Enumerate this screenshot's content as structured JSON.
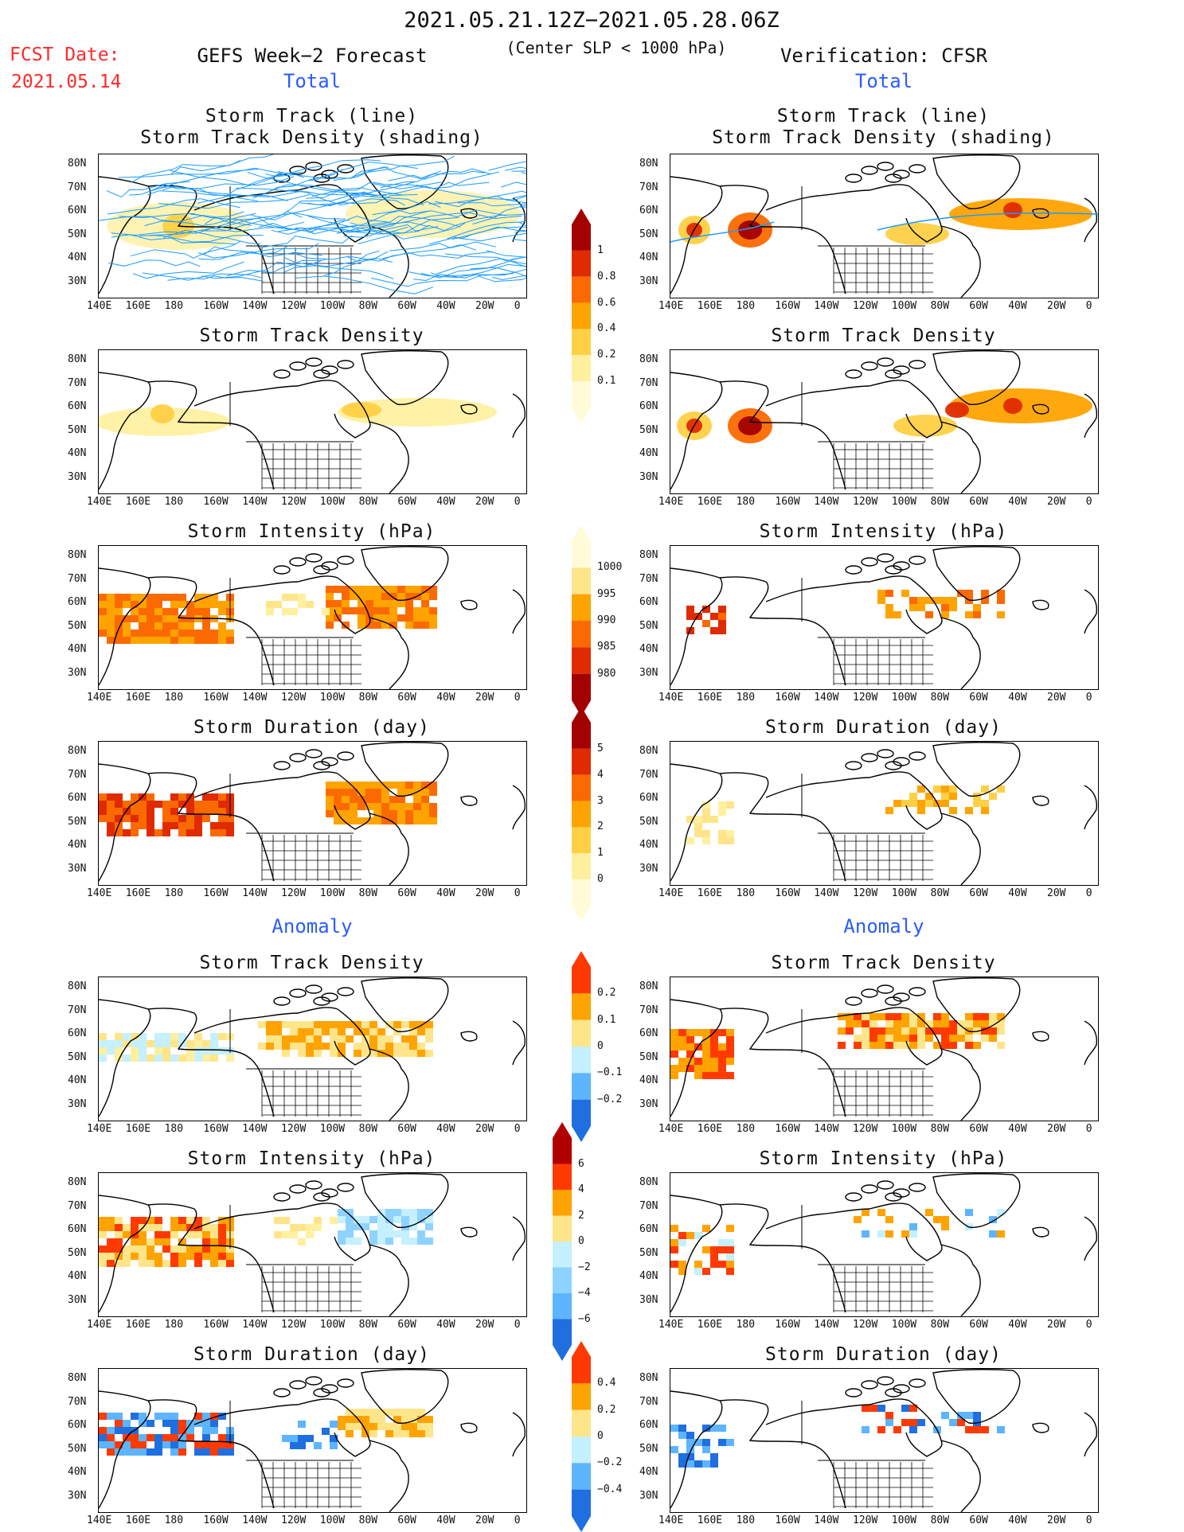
{
  "header": {
    "date_range": "2021.05.21.12Z−2021.05.28.06Z",
    "criterion": "(Center SLP < 1000 hPa)",
    "fcst_label": "FCST Date:",
    "fcst_date": "2021.05.14",
    "left_title": "GEFS Week−2 Forecast",
    "right_title": "Verification: CFSR"
  },
  "sections": {
    "total_label": "Total",
    "anomaly_label": "Anomaly"
  },
  "panel_titles": {
    "track_line": "Storm Track (line)",
    "track_shading": "Storm Track Density (shading)",
    "density": "Storm Track Density",
    "intensity": "Storm Intensity (hPa)",
    "duration": "Storm Duration (day)"
  },
  "axes": {
    "lat_ticks": [
      "80N",
      "70N",
      "60N",
      "50N",
      "40N",
      "30N"
    ],
    "lon_ticks": [
      "140E",
      "160E",
      "180",
      "160W",
      "140W",
      "120W",
      "100W",
      "80W",
      "60W",
      "40W",
      "20W",
      "0"
    ]
  },
  "colorbars": {
    "density_total": {
      "labels": [
        "1",
        "0.8",
        "0.6",
        "0.4",
        "0.2",
        "0.1"
      ],
      "colors": [
        "#a30000",
        "#e02a00",
        "#fb6a00",
        "#ffa300",
        "#ffd045",
        "#fff0a0",
        "#fffbd8"
      ]
    },
    "intensity_total": {
      "labels": [
        "1000",
        "995",
        "990",
        "985",
        "980"
      ],
      "colors": [
        "#fffbd8",
        "#ffe58a",
        "#ffa300",
        "#fb6a00",
        "#e02a00",
        "#a30000"
      ]
    },
    "duration_total": {
      "labels": [
        "5",
        "4",
        "3",
        "2",
        "1",
        "0"
      ],
      "colors": [
        "#a30000",
        "#e02a00",
        "#fb6a00",
        "#ffa300",
        "#ffd045",
        "#fff0a0",
        "#fffbd8"
      ]
    },
    "density_anom": {
      "labels": [
        "0.2",
        "0.1",
        "0",
        "−0.1",
        "−0.2"
      ],
      "colors": [
        "#ff3a00",
        "#ffa300",
        "#ffe58a",
        "#c5f0ff",
        "#5db5ff",
        "#1f6fe0"
      ]
    },
    "intensity_anom": {
      "labels": [
        "6",
        "4",
        "2",
        "0",
        "−2",
        "−4",
        "−6"
      ],
      "colors": [
        "#b00000",
        "#ff3a00",
        "#ffa300",
        "#ffe58a",
        "#c5f0ff",
        "#8ed3ff",
        "#5db5ff",
        "#1f6fe0"
      ]
    },
    "duration_anom": {
      "labels": [
        "0.4",
        "0.2",
        "0",
        "−0.2",
        "−0.4"
      ],
      "colors": [
        "#ff3a00",
        "#ffa300",
        "#ffe58a",
        "#c5f0ff",
        "#5db5ff",
        "#1f6fe0"
      ]
    }
  },
  "colors": {
    "track_line": "#1a9bff",
    "title_red": "#ff2a2a",
    "title_blue": "#2a5cff"
  }
}
